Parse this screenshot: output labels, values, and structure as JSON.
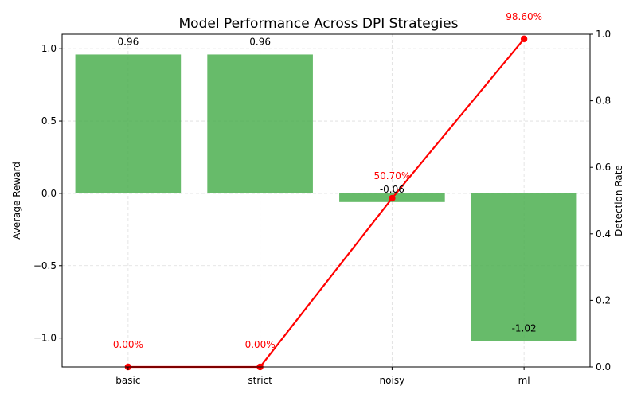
{
  "chart_data": {
    "type": "bar+line",
    "title": "Model Performance Across DPI Strategies",
    "categories": [
      "basic",
      "strict",
      "noisy",
      "ml"
    ],
    "bar_series": {
      "values": [
        0.96,
        0.96,
        -0.06,
        -1.02
      ],
      "value_labels": [
        "0.96",
        "0.96",
        "-0.06",
        "-1.02"
      ],
      "color": "#4CAF50"
    },
    "line_series": {
      "values": [
        0.0,
        0.0,
        0.507,
        0.986
      ],
      "value_labels": [
        "0.00%",
        "0.00%",
        "50.70%",
        "98.60%"
      ],
      "color": "#ff0000"
    },
    "ylabel_left": "Average Reward",
    "ylabel_right": "Detection Rate",
    "ylim_left": [
      -1.2,
      1.1
    ],
    "ylim_right": [
      0,
      1
    ],
    "yticks_left": [
      -1.0,
      -0.5,
      0.0,
      0.5,
      1.0
    ],
    "ytick_labels_left": [
      "−1.0",
      "−0.5",
      "0.0",
      "0.5",
      "1.0"
    ],
    "yticks_right": [
      0.0,
      0.2,
      0.4,
      0.6,
      0.8,
      1.0
    ],
    "ytick_labels_right": [
      "0.0",
      "0.2",
      "0.4",
      "0.6",
      "0.8",
      "1.0"
    ],
    "grid": true
  }
}
